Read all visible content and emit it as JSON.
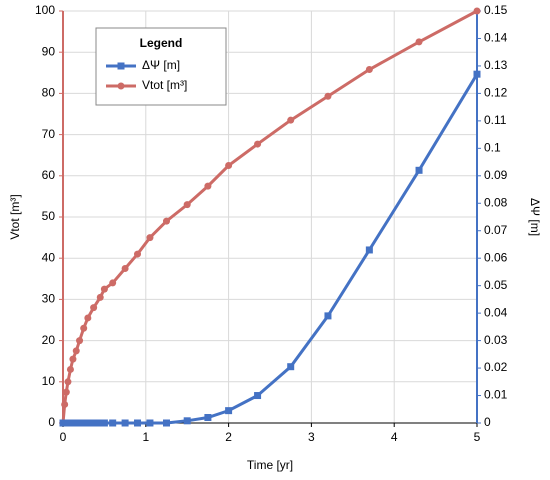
{
  "chart_data": {
    "type": "line",
    "x_label": "Time [yr]",
    "y_label": "Vtot [m³]",
    "y2_label": "ΔΨ [m]",
    "legend_title": "Legend",
    "legend": "upper left",
    "grid": true,
    "x": [
      0,
      0.02,
      0.04,
      0.06,
      0.09,
      0.12,
      0.16,
      0.2,
      0.25,
      0.3,
      0.37,
      0.45,
      0.5,
      0.6,
      0.75,
      0.9,
      1.05,
      1.25,
      1.5,
      1.75,
      2.0,
      2.35,
      2.75,
      3.2,
      3.7,
      4.3,
      5.0
    ],
    "series": [
      {
        "name": "ΔΨ [m]",
        "color": "#4472c4",
        "axis": "y2",
        "marker": "square",
        "values": [
          0,
          0,
          0,
          0,
          0,
          0,
          0,
          0,
          0,
          0,
          0,
          0,
          0,
          0,
          0,
          0,
          0,
          0,
          0.0008,
          0.002,
          0.0045,
          0.01,
          0.0205,
          0.039,
          0.063,
          0.092,
          0.127
        ]
      },
      {
        "name": "Vtot [m³]",
        "color": "#cd6b66",
        "marker": "circle",
        "values": [
          0,
          4.5,
          7.5,
          10,
          13,
          15.5,
          17.5,
          20,
          23,
          25.5,
          28,
          30.5,
          32.5,
          34,
          37.5,
          41,
          45,
          49,
          53,
          57.5,
          62.5,
          67.7,
          73.5,
          79.3,
          85.8,
          92.5,
          100
        ]
      }
    ],
    "xlim": [
      0,
      5
    ],
    "xticks": [
      0,
      1,
      2,
      3,
      4,
      5
    ],
    "ylim": [
      0,
      100
    ],
    "yticks": [
      0,
      10,
      20,
      30,
      40,
      50,
      60,
      70,
      80,
      90,
      100
    ],
    "y2lim": [
      0,
      0.15
    ],
    "y2ticks": [
      0,
      0.01,
      0.02,
      0.03,
      0.04,
      0.05,
      0.06,
      0.07,
      0.08,
      0.09,
      0.1,
      0.11,
      0.12,
      0.13,
      0.14,
      0.15
    ]
  }
}
